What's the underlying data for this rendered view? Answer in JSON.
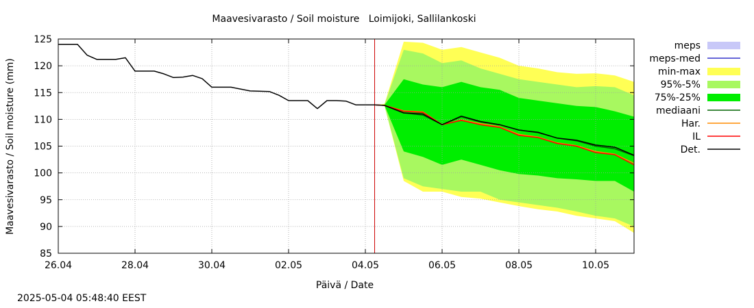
{
  "title": "Maavesivarasto / Soil moisture   Loimijoki, Sallilankoski",
  "timestamp": "2025-05-04 05:48:40 EEST",
  "chart_data": {
    "type": "area",
    "title": "Maavesivarasto / Soil moisture   Loimijoki, Sallilankoski",
    "xlabel": "Päivä / Date",
    "ylabel": "Maavesivarasto / Soil moisture (mm)",
    "ylim": [
      85,
      125
    ],
    "xlim": [
      "2025-04-26",
      "2025-05-11"
    ],
    "grid": true,
    "legend_position": "right",
    "yticks": [
      85,
      90,
      95,
      100,
      105,
      110,
      115,
      120,
      125
    ],
    "xticks": [
      {
        "date": "2025-04-26",
        "label": "26.04"
      },
      {
        "date": "2025-04-28",
        "label": "28.04"
      },
      {
        "date": "2025-04-30",
        "label": "30.04"
      },
      {
        "date": "2025-05-02",
        "label": "02.05"
      },
      {
        "date": "2025-05-04",
        "label": "04.05"
      },
      {
        "date": "2025-05-06",
        "label": "06.05"
      },
      {
        "date": "2025-05-08",
        "label": "08.05"
      },
      {
        "date": "2025-05-10",
        "label": "10.05"
      }
    ],
    "forecast_time": "2025-05-04 05:48",
    "colors": {
      "meps": "#c8c8f8",
      "meps_med": "#3333cc",
      "minmax": "#ffff55",
      "p95_5": "#a8f860",
      "p75_25": "#00ee00",
      "median": "#006400",
      "har": "#ff8c00",
      "il": "#ff0000",
      "det": "#000000",
      "vline": "#cc0000"
    },
    "legend": [
      {
        "key": "meps",
        "label": "meps",
        "kind": "box"
      },
      {
        "key": "meps_med",
        "label": "meps-med",
        "kind": "line"
      },
      {
        "key": "minmax",
        "label": "min-max",
        "kind": "box"
      },
      {
        "key": "p95_5",
        "label": "95%-5%",
        "kind": "box"
      },
      {
        "key": "p75_25",
        "label": "75%-25%",
        "kind": "box"
      },
      {
        "key": "median",
        "label": "mediaani",
        "kind": "line"
      },
      {
        "key": "har",
        "label": "Har.",
        "kind": "line"
      },
      {
        "key": "il",
        "label": "IL",
        "kind": "line"
      },
      {
        "key": "det",
        "label": "Det.",
        "kind": "line"
      }
    ],
    "observed": {
      "t": [
        "2025-04-26 00:00",
        "2025-04-26 12:00",
        "2025-04-26 18:00",
        "2025-04-27 00:00",
        "2025-04-27 12:00",
        "2025-04-27 18:00",
        "2025-04-28 00:00",
        "2025-04-28 12:00",
        "2025-04-28 18:00",
        "2025-04-29 00:00",
        "2025-04-29 06:00",
        "2025-04-29 12:00",
        "2025-04-29 18:00",
        "2025-04-30 00:00",
        "2025-04-30 12:00",
        "2025-05-01 00:00",
        "2025-05-01 12:00",
        "2025-05-01 18:00",
        "2025-05-02 00:00",
        "2025-05-02 12:00",
        "2025-05-02 18:00",
        "2025-05-03 00:00",
        "2025-05-03 06:00",
        "2025-05-03 12:00",
        "2025-05-03 18:00",
        "2025-05-04 06:00"
      ],
      "y": [
        124.0,
        124.0,
        122.0,
        121.2,
        121.2,
        121.5,
        119.0,
        119.0,
        118.5,
        117.8,
        117.9,
        118.2,
        117.6,
        116.0,
        116.0,
        115.3,
        115.2,
        114.5,
        113.5,
        113.5,
        112.0,
        113.5,
        113.5,
        113.4,
        112.7,
        112.7
      ]
    },
    "forecast": {
      "t": [
        "2025-05-04 06:00",
        "2025-05-04 12:00",
        "2025-05-05 00:00",
        "2025-05-05 12:00",
        "2025-05-06 00:00",
        "2025-05-06 12:00",
        "2025-05-07 00:00",
        "2025-05-07 12:00",
        "2025-05-08 00:00",
        "2025-05-08 12:00",
        "2025-05-09 00:00",
        "2025-05-09 12:00",
        "2025-05-10 00:00",
        "2025-05-10 12:00",
        "2025-05-11 00:00"
      ],
      "minmax_low": [
        112.7,
        112.5,
        98.5,
        96.5,
        96.5,
        95.5,
        95.2,
        94.5,
        93.8,
        93.2,
        92.8,
        92.0,
        91.5,
        91.0,
        88.8
      ],
      "minmax_high": [
        112.7,
        112.9,
        124.5,
        124.3,
        123.0,
        123.5,
        122.5,
        121.5,
        120.0,
        119.5,
        118.8,
        118.5,
        118.6,
        118.2,
        117.0
      ],
      "p95_low": [
        112.7,
        112.5,
        99.0,
        97.5,
        97.0,
        96.5,
        96.5,
        95.0,
        94.5,
        94.0,
        93.5,
        92.8,
        92.0,
        91.5,
        90.0
      ],
      "p95_high": [
        112.7,
        112.8,
        123.0,
        122.3,
        120.5,
        121.0,
        119.5,
        118.5,
        117.5,
        117.0,
        116.5,
        116.0,
        116.2,
        116.0,
        114.5
      ],
      "p75_low": [
        112.7,
        112.6,
        104.0,
        103.0,
        101.5,
        102.5,
        101.5,
        100.5,
        99.8,
        99.5,
        99.0,
        98.8,
        98.5,
        98.5,
        96.5
      ],
      "p75_high": [
        112.7,
        112.7,
        117.5,
        116.5,
        116.0,
        117.0,
        116.0,
        115.5,
        114.0,
        113.5,
        113.0,
        112.5,
        112.3,
        111.5,
        110.5
      ],
      "median": [
        112.7,
        112.6,
        111.2,
        110.8,
        109.0,
        110.5,
        109.5,
        109.0,
        108.0,
        107.5,
        106.5,
        106.0,
        105.0,
        104.5,
        103.2
      ],
      "har": [
        112.7,
        112.6,
        111.6,
        111.4,
        109.0,
        109.9,
        109.2,
        108.6,
        107.2,
        106.7,
        105.6,
        105.1,
        104.0,
        103.5,
        101.8
      ],
      "il": [
        112.7,
        112.6,
        111.5,
        111.3,
        109.0,
        109.8,
        109.0,
        108.5,
        107.0,
        106.6,
        105.5,
        105.0,
        103.8,
        103.4,
        101.5
      ],
      "det": [
        112.7,
        112.6,
        111.2,
        111.0,
        109.0,
        110.6,
        109.6,
        109.0,
        108.0,
        107.6,
        106.5,
        106.1,
        105.2,
        104.8,
        103.3
      ]
    }
  }
}
